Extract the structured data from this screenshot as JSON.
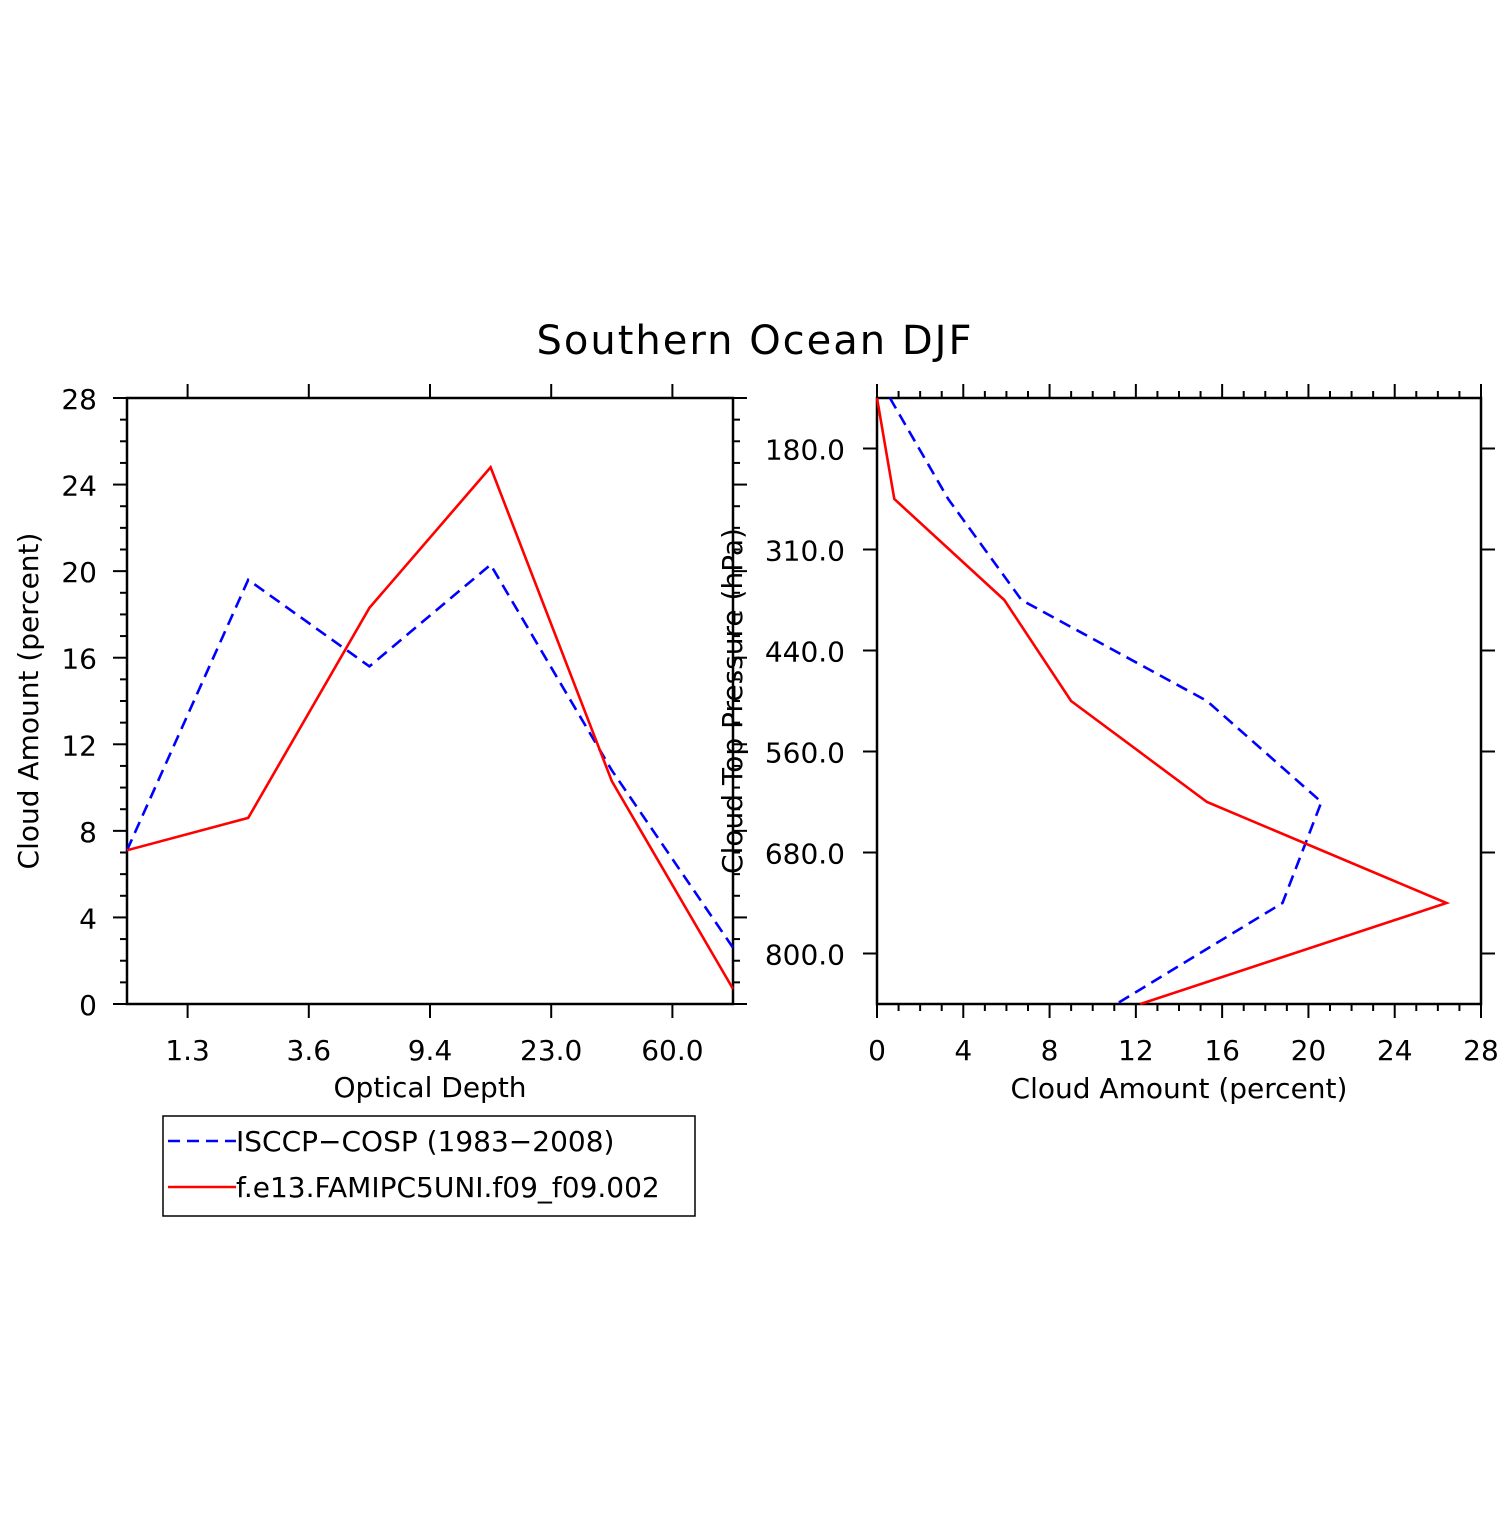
{
  "figure_title": "Southern Ocean DJF",
  "colors": {
    "obs": "#0000ff",
    "model": "#ff0000",
    "axis": "#000000"
  },
  "legend": {
    "entries": [
      {
        "label": "ISCCP−COSP (1983−2008)",
        "style": "dashed",
        "color": "#0000ff"
      },
      {
        "label": "f.e13.FAMIPC5UNI.f09_f09.002",
        "style": "solid",
        "color": "#ff0000"
      }
    ]
  },
  "chart_data": [
    {
      "type": "line",
      "title": "Southern Ocean DJF",
      "xlabel": "Optical Depth",
      "ylabel": "Cloud Amount (percent)",
      "xlim": [
        0,
        5
      ],
      "ylim": [
        0,
        28
      ],
      "x_tick_labels": [
        {
          "pos": 0.5,
          "label": "1.3"
        },
        {
          "pos": 1.5,
          "label": "3.6"
        },
        {
          "pos": 2.5,
          "label": "9.4"
        },
        {
          "pos": 3.5,
          "label": "23.0"
        },
        {
          "pos": 4.5,
          "label": "60.0"
        }
      ],
      "y_ticks": [
        0,
        4,
        8,
        12,
        16,
        20,
        24,
        28
      ],
      "x": [
        0,
        1,
        2,
        3,
        4,
        5
      ],
      "series": [
        {
          "name": "ISCCP−COSP (1983−2008)",
          "style": "dashed",
          "values": [
            7.1,
            19.6,
            15.6,
            20.3,
            10.8,
            2.6
          ]
        },
        {
          "name": "f.e13.FAMIPC5UNI.f09_f09.002",
          "style": "solid",
          "values": [
            7.1,
            8.6,
            18.3,
            24.8,
            10.3,
            0.7
          ]
        }
      ]
    },
    {
      "type": "line",
      "orientation": "horizontal",
      "xlabel": "Cloud Amount (percent)",
      "ylabel": "Cloud Top Pressure (hPa)",
      "xlim": [
        0,
        28
      ],
      "ylim": [
        6,
        0
      ],
      "x_ticks": [
        0,
        4,
        8,
        12,
        16,
        20,
        24,
        28
      ],
      "y_tick_labels": [
        {
          "pos": 0.5,
          "label": "180.0"
        },
        {
          "pos": 1.5,
          "label": "310.0"
        },
        {
          "pos": 2.5,
          "label": "440.0"
        },
        {
          "pos": 3.5,
          "label": "560.0"
        },
        {
          "pos": 4.5,
          "label": "680.0"
        },
        {
          "pos": 5.5,
          "label": "800.0"
        }
      ],
      "levels": [
        0,
        1,
        2,
        3,
        4,
        5,
        6
      ],
      "series": [
        {
          "name": "ISCCP−COSP (1983−2008)",
          "style": "dashed",
          "values": [
            0.6,
            3.3,
            6.7,
            15.3,
            20.6,
            18.8,
            11.1
          ]
        },
        {
          "name": "f.e13.FAMIPC5UNI.f09_f09.002",
          "style": "solid",
          "values": [
            0,
            0.8,
            5.9,
            9.0,
            15.3,
            26.4,
            12.2
          ]
        }
      ]
    }
  ]
}
